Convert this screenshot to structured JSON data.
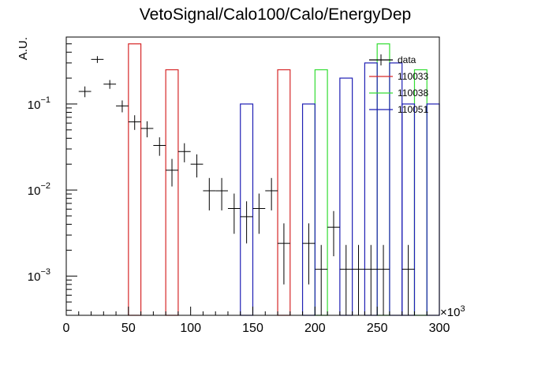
{
  "chart_data": {
    "type": "histogram",
    "title": "VetoSignal/Calo100/Calo/EnergyDep",
    "ylabel": "A.U.",
    "xlabel": "",
    "x_multiplier": "×10",
    "x_multiplier_exp": "3",
    "xlim": [
      0,
      300
    ],
    "ylim": [
      0.00035,
      0.6
    ],
    "yscale": "log",
    "grid": false,
    "legend_position": "top-right",
    "x_ticks": [
      {
        "value": 0,
        "label": "0"
      },
      {
        "value": 50,
        "label": "50"
      },
      {
        "value": 100,
        "label": "100"
      },
      {
        "value": 150,
        "label": "150"
      },
      {
        "value": 200,
        "label": "200"
      },
      {
        "value": 250,
        "label": "250"
      },
      {
        "value": 300,
        "label": "300"
      }
    ],
    "y_ticks": [
      {
        "value": 0.001,
        "base": "10",
        "exp": "−3"
      },
      {
        "value": 0.01,
        "base": "10",
        "exp": "−2"
      },
      {
        "value": 0.1,
        "base": "10",
        "exp": "−1"
      }
    ],
    "series": [
      {
        "name": "data",
        "color": "#000000",
        "style": "points",
        "bin_width": 10,
        "x": [
          15,
          25,
          35,
          45,
          55,
          65,
          75,
          85,
          95,
          105,
          115,
          125,
          135,
          145,
          155,
          165,
          175,
          195,
          205,
          215,
          225,
          235,
          245,
          255,
          275
        ],
        "y": [
          0.14,
          0.33,
          0.17,
          0.095,
          0.062,
          0.052,
          0.033,
          0.017,
          0.028,
          0.02,
          0.0098,
          0.0098,
          0.0061,
          0.0049,
          0.0061,
          0.0098,
          0.0024,
          0.0024,
          0.0012,
          0.0037,
          0.0012,
          0.0012,
          0.0012,
          0.0012,
          0.0012
        ],
        "yerr_lo": [
          0.02,
          0.03,
          0.02,
          0.015,
          0.012,
          0.011,
          0.008,
          0.006,
          0.007,
          0.006,
          0.004,
          0.004,
          0.003,
          0.0025,
          0.003,
          0.004,
          0.0016,
          0.0016,
          0.0009,
          0.002,
          0.0009,
          0.0009,
          0.0009,
          0.0009,
          0.0009
        ],
        "yerr_hi": [
          0.02,
          0.03,
          0.02,
          0.015,
          0.012,
          0.011,
          0.008,
          0.006,
          0.007,
          0.006,
          0.004,
          0.004,
          0.003,
          0.0025,
          0.003,
          0.004,
          0.0017,
          0.0017,
          0.0011,
          0.002,
          0.0011,
          0.0011,
          0.0011,
          0.0011,
          0.0011
        ]
      },
      {
        "name": "110033",
        "color": "#d62728",
        "style": "hist",
        "bins": [
          {
            "x0": 50,
            "x1": 60,
            "y": 0.5
          },
          {
            "x0": 80,
            "x1": 90,
            "y": 0.25
          },
          {
            "x0": 170,
            "x1": 180,
            "y": 0.25
          }
        ]
      },
      {
        "name": "110038",
        "color": "#33dd33",
        "style": "hist",
        "bins": [
          {
            "x0": 200,
            "x1": 210,
            "y": 0.25
          },
          {
            "x0": 250,
            "x1": 260,
            "y": 0.5
          },
          {
            "x0": 280,
            "x1": 290,
            "y": 0.25
          }
        ]
      },
      {
        "name": "110051",
        "color": "#1f1fb4",
        "style": "hist",
        "bins": [
          {
            "x0": 140,
            "x1": 150,
            "y": 0.1
          },
          {
            "x0": 190,
            "x1": 200,
            "y": 0.1
          },
          {
            "x0": 220,
            "x1": 230,
            "y": 0.2
          },
          {
            "x0": 240,
            "x1": 250,
            "y": 0.3
          },
          {
            "x0": 260,
            "x1": 270,
            "y": 0.3
          },
          {
            "x0": 270,
            "x1": 280,
            "y": 0.1
          },
          {
            "x0": 290,
            "x1": 300,
            "y": 0.1
          }
        ]
      }
    ]
  }
}
